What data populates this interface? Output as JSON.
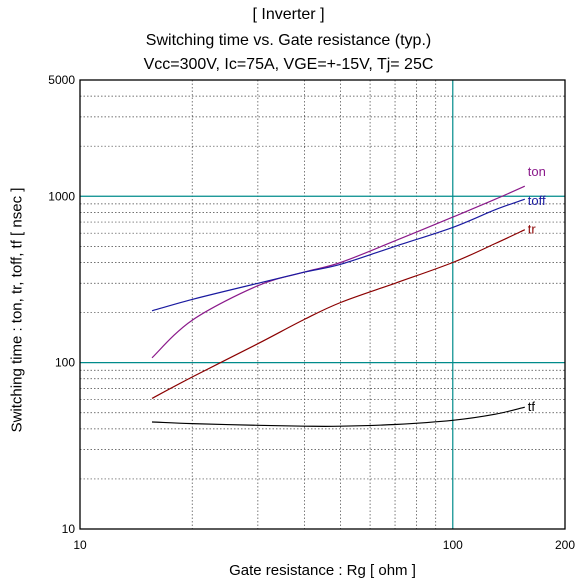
{
  "chart_data": {
    "type": "line",
    "title": "[ Inverter ]",
    "subtitle": "Switching time  vs.  Gate resistance  (typ.)",
    "conditions": "Vcc=300V, Ic=75A, VGE=+-15V, Tj= 25C",
    "xlabel": "Gate resistance  :  Rg  [ ohm ]",
    "ylabel": "Switching time  :  ton, tr, toff, tf  [ nsec ]",
    "x_scale": "log",
    "y_scale": "log",
    "xlim": [
      10,
      200
    ],
    "ylim": [
      10,
      5000
    ],
    "x_ticks": [
      {
        "value": 10,
        "label": "10"
      },
      {
        "value": 100,
        "label": "100"
      },
      {
        "value": 200,
        "label": "200"
      }
    ],
    "y_ticks": [
      {
        "value": 10,
        "label": "10"
      },
      {
        "value": 100,
        "label": "100"
      },
      {
        "value": 1000,
        "label": "1000"
      },
      {
        "value": 5000,
        "label": "5000"
      }
    ],
    "grid": true,
    "series": [
      {
        "name": "ton",
        "color": "#8b1a8b",
        "x": [
          15.6,
          20,
          30,
          40,
          50,
          70,
          100,
          130,
          156
        ],
        "y": [
          107,
          180,
          290,
          350,
          400,
          540,
          750,
          960,
          1150
        ]
      },
      {
        "name": "toff",
        "color": "#1a1aa0",
        "x": [
          15.6,
          20,
          30,
          40,
          50,
          70,
          100,
          130,
          156
        ],
        "y": [
          205,
          240,
          300,
          350,
          390,
          500,
          650,
          830,
          960
        ]
      },
      {
        "name": "tr",
        "color": "#8b0000",
        "x": [
          15.6,
          20,
          30,
          40,
          50,
          70,
          100,
          130,
          156
        ],
        "y": [
          61,
          82,
          130,
          182,
          230,
          300,
          400,
          520,
          630
        ]
      },
      {
        "name": "tf",
        "color": "#000000",
        "x": [
          15.6,
          20,
          30,
          40,
          50,
          70,
          100,
          130,
          156
        ],
        "y": [
          44,
          43,
          42,
          41.5,
          41.5,
          42.5,
          45,
          49,
          54
        ]
      }
    ]
  }
}
